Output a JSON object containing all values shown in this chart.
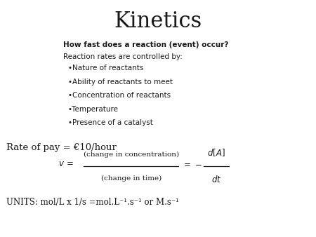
{
  "title": "Kinetics",
  "title_fontsize": 22,
  "bg_color": "#ffffff",
  "text_color": "#1a1a1a",
  "bold_question": "How fast does a reaction (event) occur?",
  "intro_line": "Reaction rates are controlled by:",
  "bullets": [
    "•Nature of reactants",
    "•Ability of reactants to meet",
    "•Concentration of reactants",
    "•Temperature",
    "•Presence of a catalyst"
  ],
  "rate_line": "Rate of pay = €10/hour",
  "units_line": "UNITS: mol/L x 1/s =mol.L⁻¹.s⁻¹ or M.s⁻¹"
}
